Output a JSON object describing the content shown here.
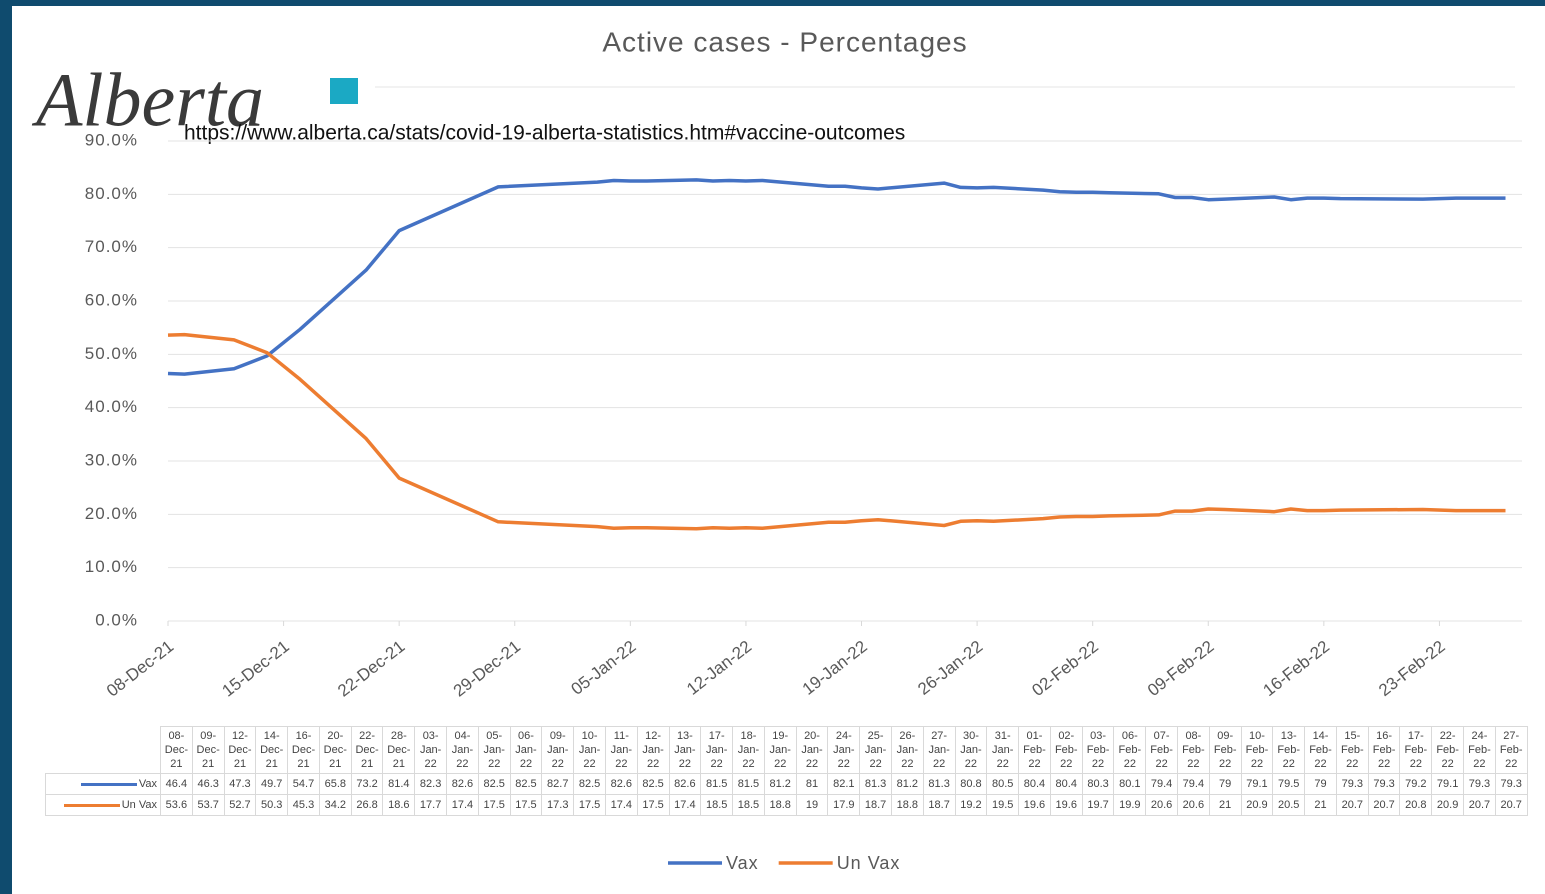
{
  "logo": "Alberta",
  "source_url": "https://www.alberta.ca/stats/covid-19-alberta-statistics.htm#vaccine-outcomes",
  "chart_data": {
    "type": "line",
    "title": "Active cases - Percentages",
    "x": [
      "08-Dec-21",
      "09-Dec-21",
      "12-Dec-21",
      "14-Dec-21",
      "16-Dec-21",
      "20-Dec-21",
      "22-Dec-21",
      "28-Dec-21",
      "03-Jan-22",
      "04-Jan-22",
      "05-Jan-22",
      "06-Jan-22",
      "09-Jan-22",
      "10-Jan-22",
      "11-Jan-22",
      "12-Jan-22",
      "13-Jan-22",
      "17-Jan-22",
      "18-Jan-22",
      "19-Jan-22",
      "20-Jan-22",
      "24-Jan-22",
      "25-Jan-22",
      "26-Jan-22",
      "27-Jan-22",
      "30-Jan-22",
      "31-Jan-22",
      "01-Feb-22",
      "02-Feb-22",
      "03-Feb-22",
      "06-Feb-22",
      "07-Feb-22",
      "08-Feb-22",
      "09-Feb-22",
      "10-Feb-22",
      "13-Feb-22",
      "14-Feb-22",
      "15-Feb-22",
      "16-Feb-22",
      "17-Feb-22",
      "22-Feb-22",
      "24-Feb-22",
      "27-Feb-22"
    ],
    "series": [
      {
        "name": "Vax",
        "color": "#4472c4",
        "values": [
          46.4,
          46.3,
          47.3,
          49.7,
          54.7,
          65.8,
          73.2,
          81.4,
          82.3,
          82.6,
          82.5,
          82.5,
          82.7,
          82.5,
          82.6,
          82.5,
          82.6,
          81.5,
          81.5,
          81.2,
          81.0,
          82.1,
          81.3,
          81.2,
          81.3,
          80.8,
          80.5,
          80.4,
          80.4,
          80.3,
          80.1,
          79.4,
          79.4,
          79.0,
          79.1,
          79.5,
          79.0,
          79.3,
          79.3,
          79.2,
          79.1,
          79.3,
          79.3
        ]
      },
      {
        "name": "Un Vax",
        "color": "#ed7d31",
        "values": [
          53.6,
          53.7,
          52.7,
          50.3,
          45.3,
          34.2,
          26.8,
          18.6,
          17.7,
          17.4,
          17.5,
          17.5,
          17.3,
          17.5,
          17.4,
          17.5,
          17.4,
          18.5,
          18.5,
          18.8,
          19.0,
          17.9,
          18.7,
          18.8,
          18.7,
          19.2,
          19.5,
          19.6,
          19.6,
          19.7,
          19.9,
          20.6,
          20.6,
          21.0,
          20.9,
          20.5,
          21.0,
          20.7,
          20.7,
          20.8,
          20.9,
          20.7,
          20.7
        ]
      }
    ],
    "xlim": [
      "08-Dec-21",
      "28-Feb-22"
    ],
    "xticks": [
      "08-Dec-21",
      "15-Dec-21",
      "22-Dec-21",
      "29-Dec-21",
      "05-Jan-22",
      "12-Jan-22",
      "19-Jan-22",
      "26-Jan-22",
      "02-Feb-22",
      "09-Feb-22",
      "16-Feb-22",
      "23-Feb-22"
    ],
    "ylim": [
      0,
      90
    ],
    "yticks": [
      {
        "value": 0,
        "label": "0.0%"
      },
      {
        "value": 10,
        "label": "10.0%"
      },
      {
        "value": 20,
        "label": "20.0%"
      },
      {
        "value": 30,
        "label": "30.0%"
      },
      {
        "value": 40,
        "label": "40.0%"
      },
      {
        "value": 50,
        "label": "50.0%"
      },
      {
        "value": 60,
        "label": "60.0%"
      },
      {
        "value": 70,
        "label": "70.0%"
      },
      {
        "value": 80,
        "label": "80.0%"
      },
      {
        "value": 90,
        "label": "90.0%"
      }
    ],
    "grid": true,
    "legend": "bottom",
    "data_table": true
  }
}
